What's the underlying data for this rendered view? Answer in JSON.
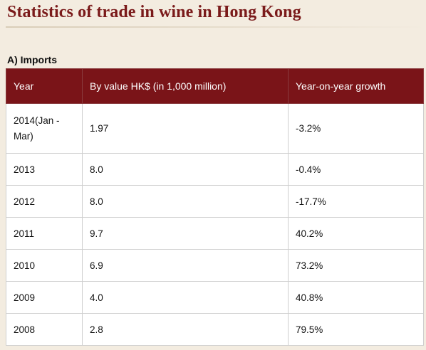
{
  "page": {
    "title": "Statistics of trade in wine in Hong Kong",
    "section_heading": "A) Imports"
  },
  "table": {
    "headers": [
      "Year",
      "By value HK$ (in 1,000 million)",
      "Year-on-year growth"
    ],
    "rows": [
      {
        "year": "2014(Jan - Mar)",
        "value": "1.97",
        "growth": "-3.2%"
      },
      {
        "year": "2013",
        "value": "8.0",
        "growth": "-0.4%"
      },
      {
        "year": "2012",
        "value": "8.0",
        "growth": "-17.7%"
      },
      {
        "year": "2011",
        "value": "9.7",
        "growth": "40.2%"
      },
      {
        "year": "2010",
        "value": "6.9",
        "growth": "73.2%"
      },
      {
        "year": "2009",
        "value": "4.0",
        "growth": "40.8%"
      },
      {
        "year": "2008",
        "value": "2.8",
        "growth": "79.5%"
      }
    ]
  },
  "colors": {
    "header_bg": "#7a1418",
    "title": "#7a1a1a",
    "page_bg": "#f3ece0"
  }
}
